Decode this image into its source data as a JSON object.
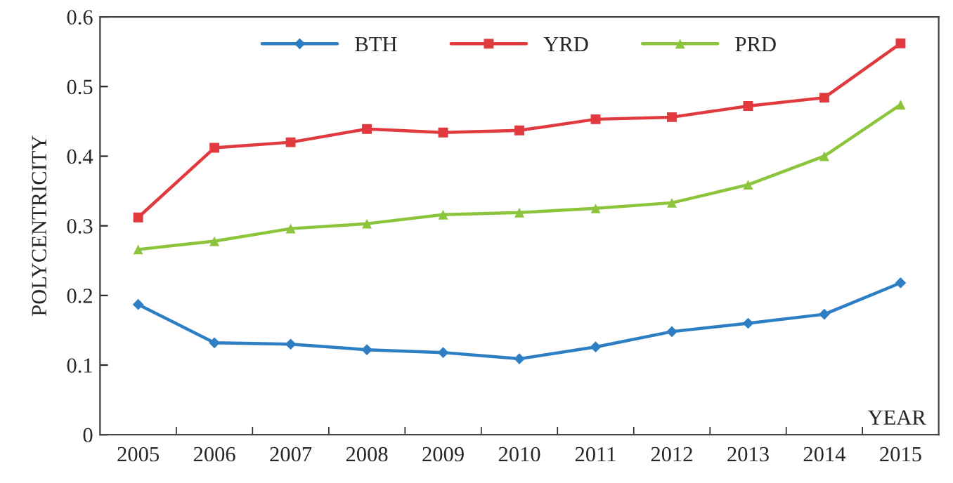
{
  "chart_data": {
    "type": "line",
    "xlabel": "YEAR",
    "ylabel": "POLYCENTRICITY",
    "categories": [
      "2005",
      "2006",
      "2007",
      "2008",
      "2009",
      "2010",
      "2011",
      "2012",
      "2013",
      "2014",
      "2015"
    ],
    "series": [
      {
        "name": "BTH",
        "color": "#2e7ec4",
        "marker": "diamond",
        "values": [
          0.187,
          0.132,
          0.13,
          0.122,
          0.118,
          0.109,
          0.126,
          0.148,
          0.16,
          0.173,
          0.218
        ]
      },
      {
        "name": "YRD",
        "color": "#e0393e",
        "marker": "square",
        "values": [
          0.312,
          0.412,
          0.42,
          0.439,
          0.434,
          0.437,
          0.453,
          0.456,
          0.472,
          0.484,
          0.562
        ]
      },
      {
        "name": "PRD",
        "color": "#8cc43c",
        "marker": "triangle",
        "values": [
          0.266,
          0.278,
          0.296,
          0.303,
          0.316,
          0.319,
          0.325,
          0.333,
          0.359,
          0.4,
          0.474
        ]
      }
    ],
    "ylim": [
      0,
      0.6
    ],
    "yticks": [
      {
        "value": 0,
        "label": "0"
      },
      {
        "value": 0.1,
        "label": "0.1"
      },
      {
        "value": 0.2,
        "label": "0.2"
      },
      {
        "value": 0.3,
        "label": "0.3"
      },
      {
        "value": 0.4,
        "label": "0.4"
      },
      {
        "value": 0.5,
        "label": "0.5"
      },
      {
        "value": 0.6,
        "label": "0.6"
      }
    ],
    "grid": false,
    "legend": "top",
    "line_style": "solid"
  }
}
